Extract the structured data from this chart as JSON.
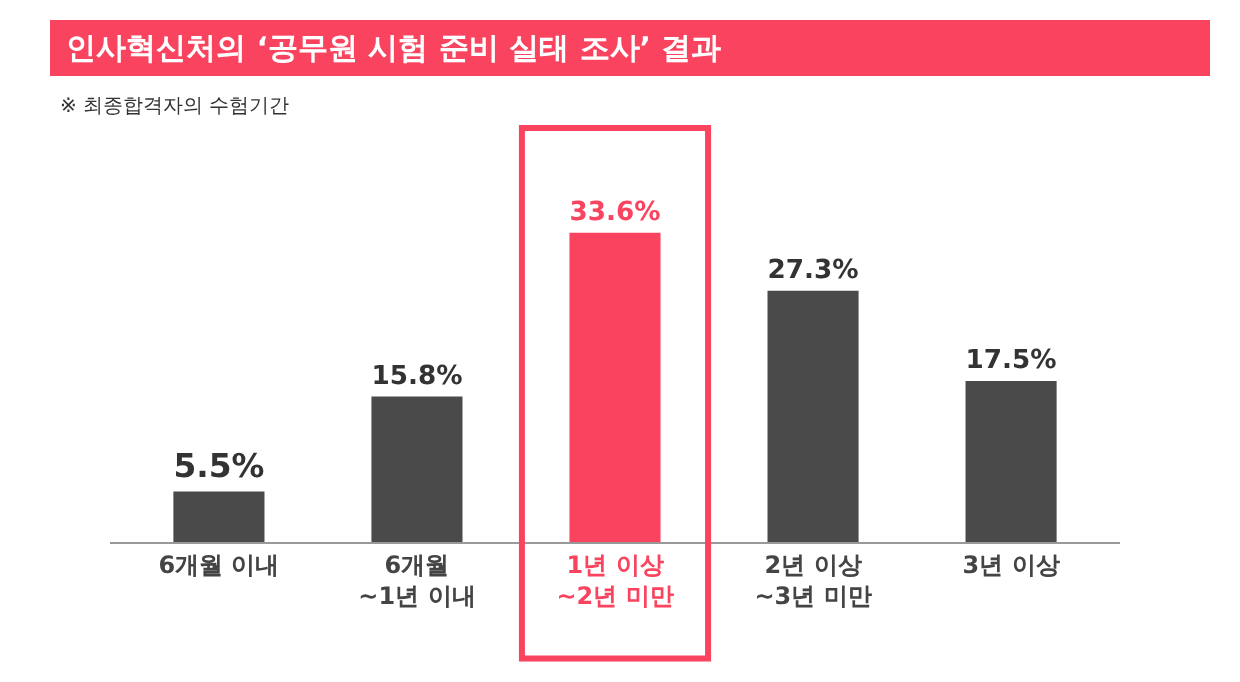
{
  "chart_data": {
    "type": "bar",
    "title": "인사혁신처의 ‘공무원 시험 준비 실태 조사’ 결과",
    "subtitle": "※ 최종합격자의 수험기간",
    "categories": [
      "6개월 이내",
      "6개월\n~1년 이내",
      "1년 이상\n~2년 미만",
      "2년 이상\n~3년 미만",
      "3년 이상"
    ],
    "values": [
      5.5,
      15.8,
      33.6,
      27.3,
      17.5
    ],
    "colors": [
      "#4a4a4a",
      "#4a4a4a",
      "#f9435f",
      "#4a4a4a",
      "#4a4a4a"
    ],
    "value_labels": [
      "5.5%",
      "15.8%",
      "33.6%",
      "27.3%",
      "17.5%"
    ],
    "grid": false,
    "legend": false
  }
}
